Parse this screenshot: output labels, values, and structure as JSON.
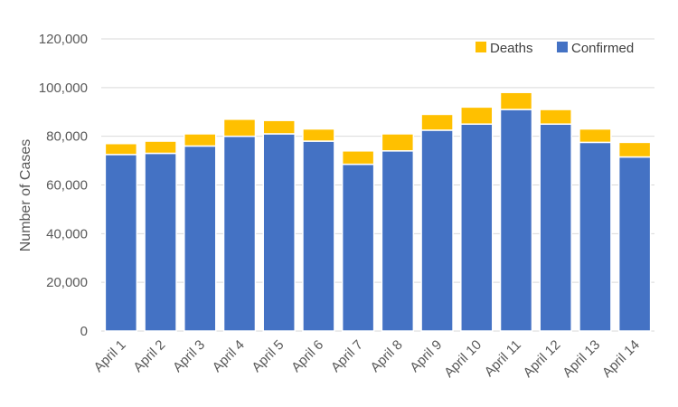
{
  "chart_data": {
    "type": "bar",
    "stacked": true,
    "categories": [
      "April 1",
      "April 2",
      "April 3",
      "April 4",
      "April 5",
      "April 6",
      "April 7",
      "April 8",
      "April 9",
      "April 10",
      "April 11",
      "April 12",
      "April 13",
      "April 14"
    ],
    "series": [
      {
        "name": "Confirmed",
        "color": "#4472c4",
        "values": [
          72500,
          73000,
          76000,
          80000,
          81000,
          78000,
          68500,
          74000,
          82500,
          85000,
          91000,
          85000,
          77500,
          71500
        ]
      },
      {
        "name": "Deaths",
        "color": "#ffc000",
        "values": [
          4500,
          5000,
          5000,
          7000,
          5500,
          5000,
          5500,
          7000,
          6500,
          7000,
          7000,
          6000,
          5500,
          6000
        ]
      }
    ],
    "ylabel": "Number of Cases",
    "ylim": [
      0,
      120000
    ],
    "yticks": [
      0,
      20000,
      40000,
      60000,
      80000,
      100000,
      120000
    ],
    "ytick_labels": [
      "0",
      "20,000",
      "40,000",
      "60,000",
      "80,000",
      "100,000",
      "120,000"
    ],
    "grid": true,
    "legend": {
      "position": "top-right",
      "items": [
        "Deaths",
        "Confirmed"
      ]
    }
  }
}
